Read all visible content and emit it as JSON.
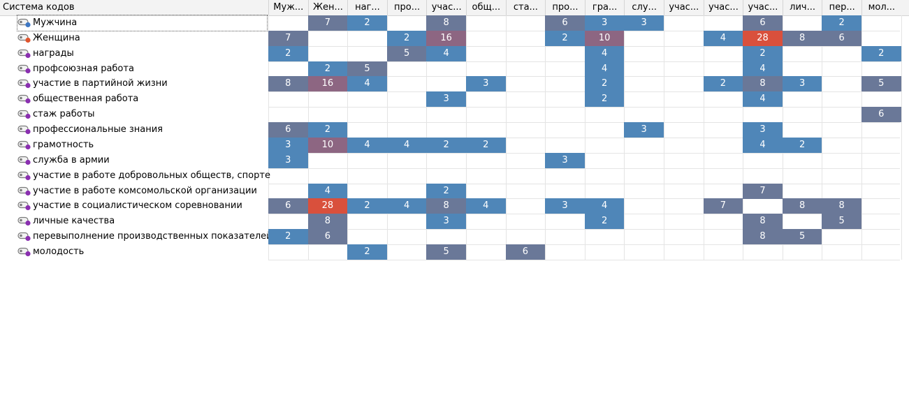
{
  "panel": {
    "title": "Система кодов"
  },
  "columns": [
    "Муж...",
    "Жен...",
    "наг...",
    "про...",
    "учас...",
    "общ...",
    "ста...",
    "про...",
    "гра...",
    "слу...",
    "учас...",
    "учас...",
    "учас...",
    "лич...",
    "пер...",
    "мол..."
  ],
  "rows": [
    {
      "label": "Мужчина",
      "dot_color": "#3d77c4",
      "focused": true
    },
    {
      "label": "Женщина",
      "dot_color": "#e0552e",
      "focused": false
    },
    {
      "label": "награды",
      "dot_color": "#8a2fb0",
      "focused": false
    },
    {
      "label": "профсоюзная работа",
      "dot_color": "#8a2fb0",
      "focused": false
    },
    {
      "label": "участие в партийной жизни",
      "dot_color": "#8a2fb0",
      "focused": false
    },
    {
      "label": "общественная работа",
      "dot_color": "#8a2fb0",
      "focused": false
    },
    {
      "label": "стаж работы",
      "dot_color": "#8a2fb0",
      "focused": false
    },
    {
      "label": "профессиональные знания",
      "dot_color": "#8a2fb0",
      "focused": false
    },
    {
      "label": "грамотность",
      "dot_color": "#8a2fb0",
      "focused": false
    },
    {
      "label": "служба в армии",
      "dot_color": "#8a2fb0",
      "focused": false
    },
    {
      "label": "участие в работе добровольных обществ, спорте",
      "dot_color": "#8a2fb0",
      "focused": false
    },
    {
      "label": "участие в работе комсомольской организации",
      "dot_color": "#8a2fb0",
      "focused": false
    },
    {
      "label": "участие в социалистическом соревновании",
      "dot_color": "#8a2fb0",
      "focused": false
    },
    {
      "label": "личные качества",
      "dot_color": "#8a2fb0",
      "focused": false
    },
    {
      "label": "перевыполнение производственных показателей",
      "dot_color": "#8a2fb0",
      "focused": false
    },
    {
      "label": "молодость",
      "dot_color": "#8a2fb0",
      "focused": false
    }
  ],
  "cells": [
    [
      null,
      7,
      2,
      null,
      8,
      null,
      null,
      6,
      3,
      3,
      null,
      null,
      6,
      null,
      2,
      null
    ],
    [
      7,
      null,
      null,
      2,
      16,
      null,
      null,
      2,
      10,
      null,
      null,
      4,
      28,
      8,
      6,
      null
    ],
    [
      2,
      null,
      null,
      5,
      4,
      null,
      null,
      null,
      4,
      null,
      null,
      null,
      2,
      null,
      null,
      2
    ],
    [
      null,
      2,
      5,
      null,
      null,
      null,
      null,
      null,
      4,
      null,
      null,
      null,
      4,
      null,
      null,
      null
    ],
    [
      8,
      16,
      4,
      null,
      null,
      3,
      null,
      null,
      2,
      null,
      null,
      2,
      8,
      3,
      null,
      5
    ],
    [
      null,
      null,
      null,
      null,
      3,
      null,
      null,
      null,
      2,
      null,
      null,
      null,
      4,
      null,
      null,
      null
    ],
    [
      null,
      null,
      null,
      null,
      null,
      null,
      null,
      null,
      null,
      null,
      null,
      null,
      null,
      null,
      null,
      6
    ],
    [
      6,
      2,
      null,
      null,
      null,
      null,
      null,
      null,
      null,
      3,
      null,
      null,
      3,
      null,
      null,
      null
    ],
    [
      3,
      10,
      4,
      4,
      2,
      2,
      null,
      null,
      null,
      null,
      null,
      null,
      4,
      2,
      null,
      null
    ],
    [
      3,
      null,
      null,
      null,
      null,
      null,
      null,
      3,
      null,
      null,
      null,
      null,
      null,
      null,
      null,
      null
    ],
    [
      null,
      null,
      null,
      null,
      null,
      null,
      null,
      null,
      null,
      null,
      null,
      null,
      null,
      null,
      null,
      null
    ],
    [
      null,
      4,
      null,
      null,
      2,
      null,
      null,
      null,
      null,
      null,
      null,
      null,
      7,
      null,
      null,
      null
    ],
    [
      6,
      28,
      2,
      4,
      8,
      4,
      null,
      3,
      4,
      null,
      null,
      7,
      null,
      8,
      8,
      null
    ],
    [
      null,
      8,
      null,
      null,
      3,
      null,
      null,
      null,
      2,
      null,
      null,
      null,
      8,
      null,
      5,
      null
    ],
    [
      2,
      6,
      null,
      null,
      null,
      null,
      null,
      null,
      null,
      null,
      null,
      null,
      8,
      5,
      null,
      null
    ],
    [
      null,
      null,
      2,
      null,
      5,
      null,
      6,
      null,
      null,
      null,
      null,
      null,
      null,
      null,
      null,
      null
    ]
  ],
  "colors": {
    "blue": "#4f86b8",
    "slate": "#6a7898",
    "mauve": "#8d6682",
    "red": "#d9503c",
    "header_bg": "#f3f3f3",
    "grid": "#e4e4e4"
  }
}
